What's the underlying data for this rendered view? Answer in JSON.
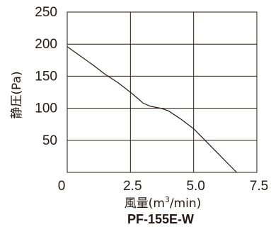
{
  "chart_data": {
    "type": "line",
    "title": "PF-155E-W",
    "xlabel": "風量(m³/min)",
    "xlabel_parts": {
      "prefix": "風量(m",
      "sup": "3",
      "suffix": "/min)"
    },
    "ylabel": "静圧(Pa)",
    "xlim": [
      0,
      7.5
    ],
    "ylim": [
      0,
      250
    ],
    "x_ticks": [
      0,
      2.5,
      5.0,
      7.5
    ],
    "x_tick_labels": [
      "0",
      "2.5",
      "5.0",
      "7.5"
    ],
    "y_ticks": [
      50,
      100,
      150,
      200,
      250
    ],
    "y_tick_labels": [
      "50",
      "100",
      "150",
      "200",
      "250"
    ],
    "grid": true,
    "series": [
      {
        "x": [
          0,
          0.5,
          1.0,
          1.5,
          2.0,
          2.5,
          2.8,
          3.0,
          3.3,
          3.7,
          4.0,
          4.5,
          5.0,
          5.5,
          6.0,
          6.7
        ],
        "y": [
          196,
          182,
          168,
          153,
          140,
          125,
          115,
          108,
          103,
          100,
          96,
          83,
          68,
          48,
          28,
          0
        ]
      }
    ],
    "colors": {
      "line": "#231815",
      "grid": "#231815"
    }
  }
}
